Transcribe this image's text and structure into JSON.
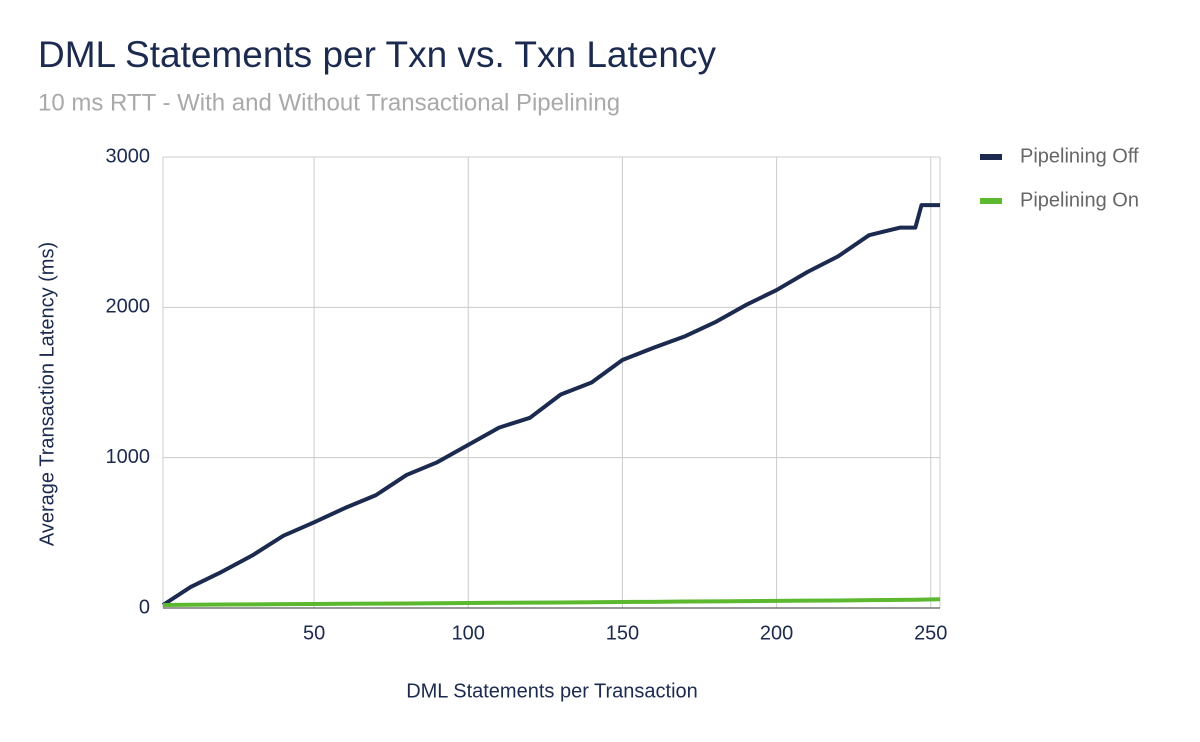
{
  "chart_data": {
    "type": "line",
    "title": "DML Statements per Txn vs. Txn Latency",
    "subtitle": "10 ms RTT - With and Without Transactional Pipelining",
    "x_label": "DML Statements per Transaction",
    "y_label": "Average Transaction Latency (ms)",
    "x": [
      1,
      10,
      20,
      30,
      40,
      50,
      60,
      70,
      80,
      90,
      100,
      110,
      120,
      130,
      140,
      150,
      160,
      170,
      180,
      190,
      200,
      210,
      220,
      230,
      240,
      245,
      247,
      253
    ],
    "series": [
      {
        "name": "Pipelining Off",
        "color": "#1b2a4e",
        "values": [
          20,
          140,
          240,
          350,
          480,
          570,
          665,
          750,
          885,
          970,
          1085,
          1200,
          1265,
          1420,
          1500,
          1650,
          1730,
          1805,
          1900,
          2015,
          2115,
          2235,
          2340,
          2480,
          2530,
          2530,
          2680,
          2680
        ]
      },
      {
        "name": "Pipelining On",
        "color": "#5cb82f",
        "values": [
          20,
          22,
          23,
          24,
          26,
          27,
          28,
          29,
          30,
          32,
          33,
          35,
          36,
          37,
          38,
          40,
          41,
          43,
          44,
          46,
          47,
          49,
          50,
          52,
          54,
          55,
          56,
          58
        ]
      }
    ],
    "xlim": [
      1,
      253
    ],
    "ylim": [
      0,
      3000
    ],
    "xticks": [
      50,
      100,
      150,
      200,
      250
    ],
    "yticks": [
      0,
      1000,
      2000,
      3000
    ],
    "grid": true,
    "legend": "right"
  }
}
